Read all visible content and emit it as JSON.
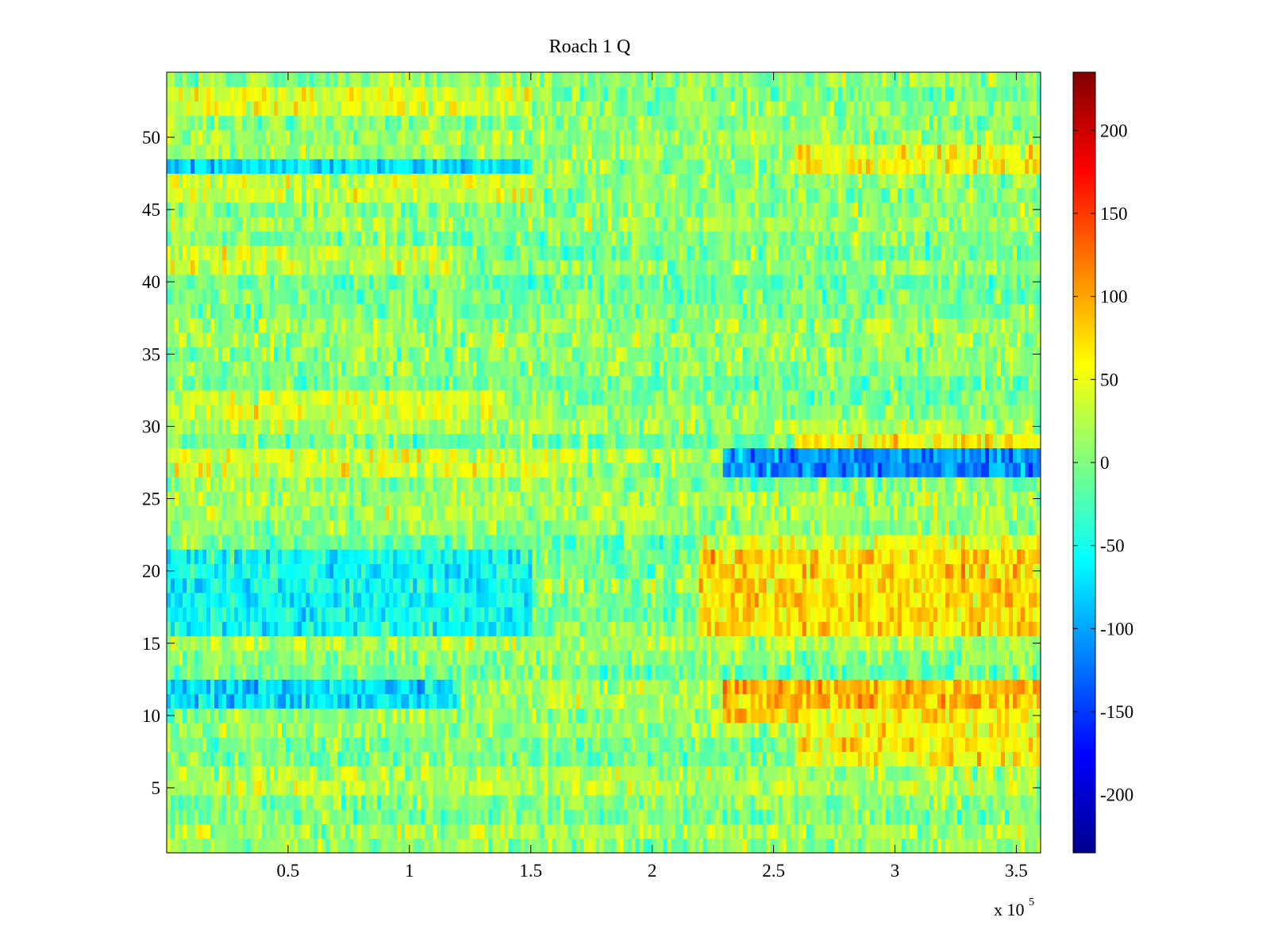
{
  "chart_data": {
    "type": "heatmap",
    "title": "Roach 1 Q",
    "xlabel": "",
    "ylabel": "",
    "x_multiplier": {
      "base": "x 10",
      "exponent": "5"
    },
    "xlim": [
      0,
      3.6
    ],
    "ylim": [
      0.5,
      54.5
    ],
    "x_ticks": [
      0.5,
      1,
      1.5,
      2,
      2.5,
      3,
      3.5
    ],
    "x_tick_labels": [
      "0.5",
      "1",
      "1.5",
      "2",
      "2.5",
      "3",
      "3.5"
    ],
    "y_ticks": [
      5,
      10,
      15,
      20,
      25,
      30,
      35,
      40,
      45,
      50
    ],
    "y_tick_labels": [
      "5",
      "10",
      "15",
      "20",
      "25",
      "30",
      "35",
      "40",
      "45",
      "50"
    ],
    "rows": 54,
    "colormap": "jet",
    "clim": [
      -235,
      235
    ],
    "colorbar_ticks": [
      200,
      150,
      100,
      50,
      0,
      -50,
      -100,
      -150,
      -200
    ],
    "colorbar_tick_labels": [
      "200",
      "150",
      "100",
      "50",
      "0",
      "-50",
      "-100",
      "-150",
      "-200"
    ],
    "regions": [
      {
        "rows": [
          52,
          53
        ],
        "x": [
          0,
          1.5
        ],
        "value": 45
      },
      {
        "rows": [
          48,
          49
        ],
        "x": [
          2.6,
          3.6
        ],
        "value": 55
      },
      {
        "rows": [
          47,
          48
        ],
        "x": [
          0,
          1.5
        ],
        "value": -70
      },
      {
        "rows": [
          46,
          47
        ],
        "x": [
          0,
          1.5
        ],
        "value": 35
      },
      {
        "rows": [
          41,
          42
        ],
        "x": [
          0,
          1.2
        ],
        "value": 35
      },
      {
        "rows": [
          31,
          32
        ],
        "x": [
          0,
          1.4
        ],
        "value": 40
      },
      {
        "rows": [
          28,
          29
        ],
        "x": [
          2.6,
          3.6
        ],
        "value": 55
      },
      {
        "rows": [
          27,
          28
        ],
        "x": [
          0,
          1.6
        ],
        "value": 40
      },
      {
        "rows": [
          27,
          28
        ],
        "x": [
          2.3,
          3.6
        ],
        "value": -110
      },
      {
        "rows": [
          21,
          22
        ],
        "x": [
          2.2,
          3.6
        ],
        "value": 45
      },
      {
        "rows": [
          16,
          21
        ],
        "x": [
          0,
          1.5
        ],
        "value": -55
      },
      {
        "rows": [
          16,
          21
        ],
        "x": [
          2.2,
          3.6
        ],
        "value": 75
      },
      {
        "rows": [
          11,
          12
        ],
        "x": [
          0,
          1.2
        ],
        "value": -75
      },
      {
        "rows": [
          10,
          12
        ],
        "x": [
          2.3,
          3.6
        ],
        "value": 90
      },
      {
        "rows": [
          7,
          10
        ],
        "x": [
          2.6,
          3.6
        ],
        "value": 60
      }
    ]
  }
}
